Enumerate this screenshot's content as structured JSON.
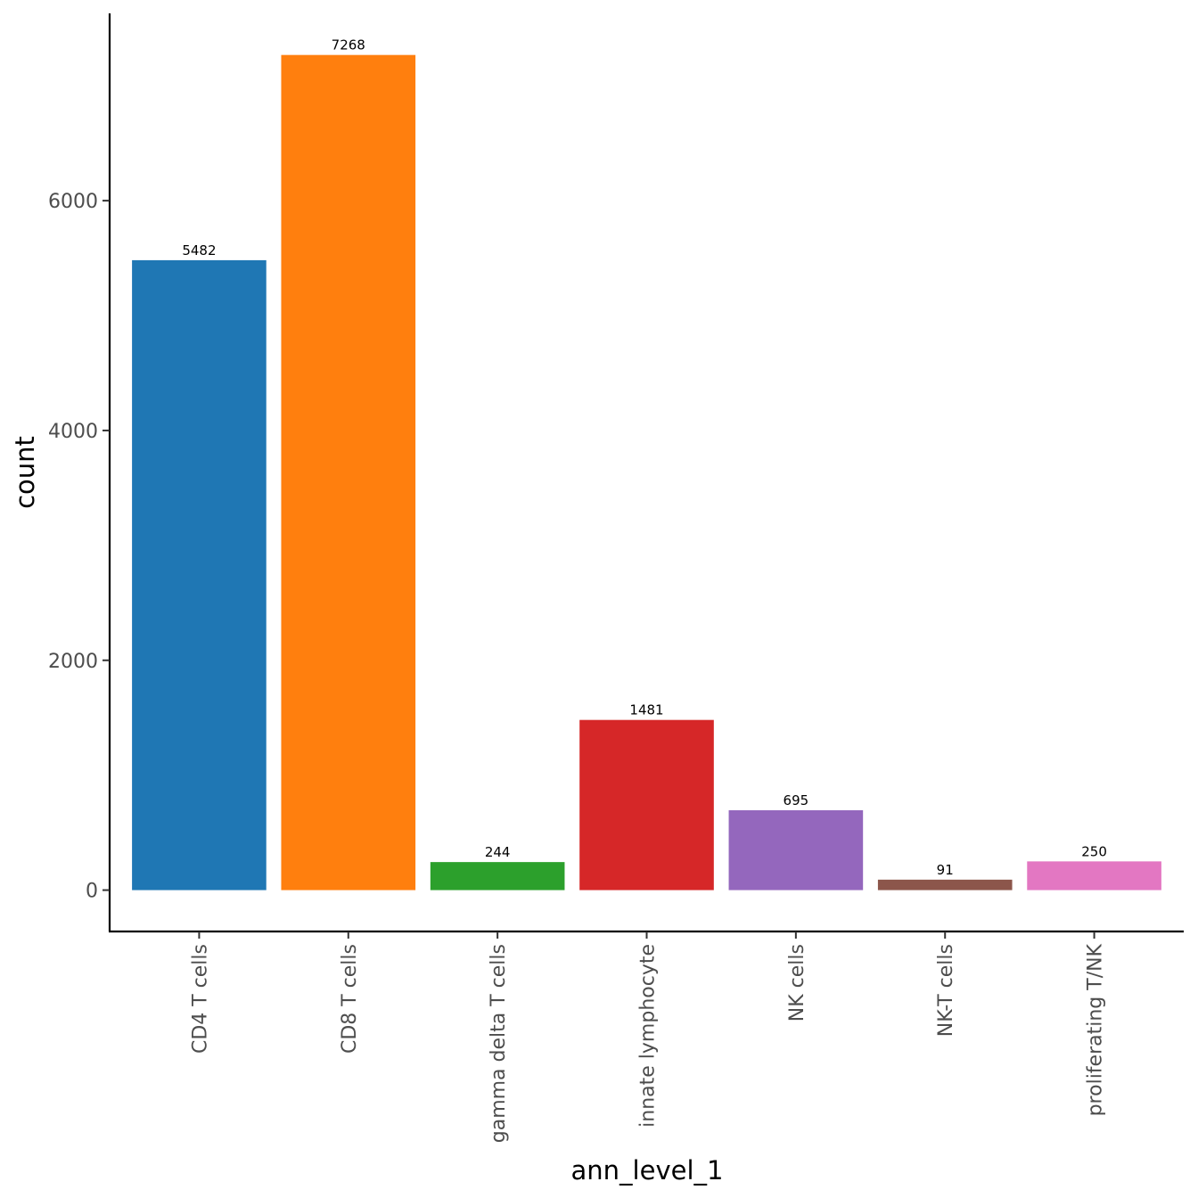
{
  "chart_data": {
    "type": "bar",
    "title": "",
    "xlabel": "ann_level_1",
    "ylabel": "count",
    "categories": [
      "CD4 T cells",
      "CD8 T cells",
      "gamma delta T cells",
      "innate lymphocyte",
      "NK cells",
      "NK-T cells",
      "proliferating T/NK"
    ],
    "values": [
      5482,
      7268,
      244,
      1481,
      695,
      91,
      250
    ],
    "data_labels": [
      "5482",
      "7268",
      "244",
      "1481",
      "695",
      "91",
      "250"
    ],
    "colors": [
      "#1f77b4",
      "#ff7f0e",
      "#2ca02c",
      "#d62728",
      "#9467bd",
      "#8c564b",
      "#e377c2"
    ],
    "yticks": [
      0,
      2000,
      4000,
      6000
    ],
    "ytick_labels": [
      "0",
      "2000",
      "4000",
      "6000"
    ],
    "ylim": [
      -360,
      7630
    ],
    "grid": false,
    "legend": "none"
  }
}
